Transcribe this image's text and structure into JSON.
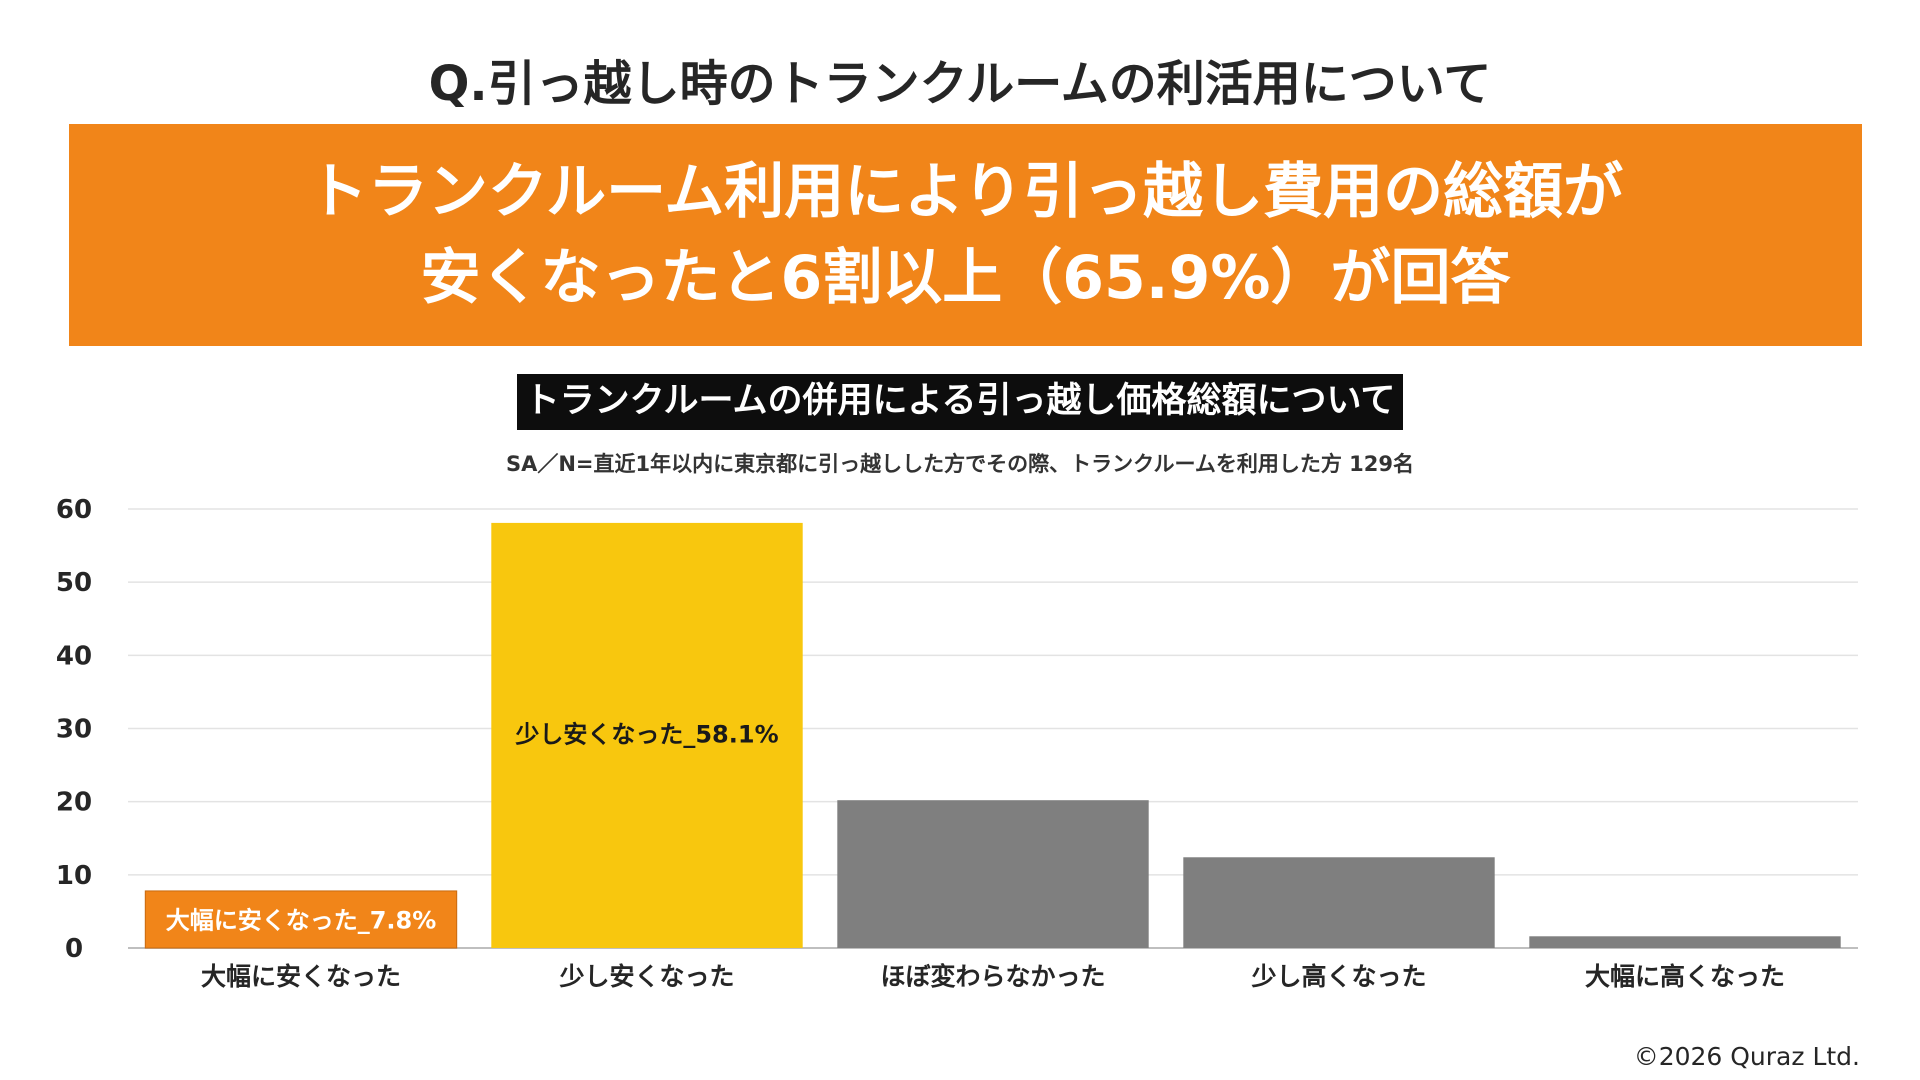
{
  "header": {
    "question": "Q.引っ越し時のトランクルームの利活用について",
    "headline_line1": "トランクルーム利用により引っ越し費用の総額が",
    "headline_line2": "安くなったと6割以上（65.9%）が回答"
  },
  "footer": {
    "copyright": "©2026 Quraz Ltd."
  },
  "colors": {
    "headline_bg": "#f18519",
    "bar_large_decrease": "#f18519",
    "bar_small_decrease": "#f8c70e",
    "bar_other": "#7f7f7f"
  },
  "chart_data": {
    "type": "bar",
    "title": "トランクルームの併用による引っ越し価格総額について",
    "subtitle": "SA／N=直近1年以内に東京都に引っ越しした方でその際、トランクルームを利用した方 129名",
    "categories": [
      "大幅に安くなった",
      "少し安くなった",
      "ほぼ変わらなかった",
      "少し高くなった",
      "大幅に高くなった"
    ],
    "values": [
      7.8,
      58.1,
      20.2,
      12.4,
      1.6
    ],
    "bar_colors": [
      "#f18519",
      "#f8c70e",
      "#7f7f7f",
      "#7f7f7f",
      "#7f7f7f"
    ],
    "data_labels": [
      "大幅に安くなった_7.8%",
      "少し安くなった_58.1%",
      "",
      "",
      ""
    ],
    "ylim": [
      0,
      60
    ],
    "yticks": [
      0,
      10,
      20,
      30,
      40,
      50,
      60
    ],
    "grid": true,
    "legend": "none"
  }
}
